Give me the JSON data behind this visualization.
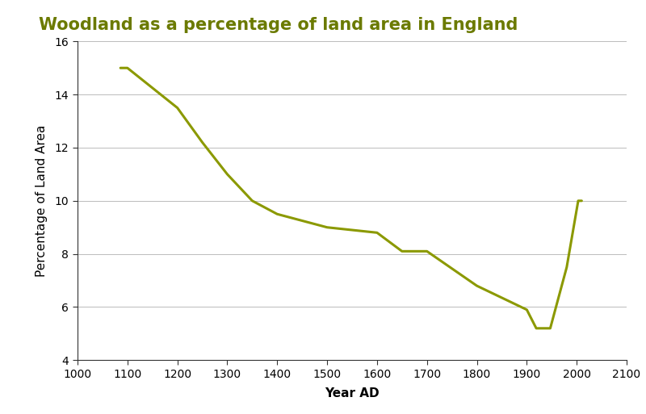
{
  "title": "Woodland as a percentage of land area in England",
  "xlabel": "Year AD",
  "ylabel": "Percentage of Land Area",
  "line_color": "#8B9900",
  "line_width": 2.2,
  "x": [
    1086,
    1100,
    1200,
    1250,
    1300,
    1350,
    1400,
    1500,
    1600,
    1650,
    1700,
    1800,
    1900,
    1919,
    1947,
    1980,
    2003,
    2010
  ],
  "y": [
    15.0,
    15.0,
    13.5,
    12.2,
    11.0,
    10.0,
    9.5,
    9.0,
    8.8,
    8.1,
    8.1,
    6.8,
    5.9,
    5.2,
    5.2,
    7.5,
    10.0,
    10.0
  ],
  "xlim": [
    1000,
    2100
  ],
  "ylim": [
    4,
    16
  ],
  "xticks": [
    1000,
    1100,
    1200,
    1300,
    1400,
    1500,
    1600,
    1700,
    1800,
    1900,
    2000,
    2100
  ],
  "yticks": [
    4,
    6,
    8,
    10,
    12,
    14,
    16
  ],
  "title_color": "#6b7a00",
  "title_fontsize": 15,
  "axis_label_fontsize": 11,
  "tick_fontsize": 10,
  "background_color": "#ffffff",
  "grid_color": "#bbbbbb",
  "grid_linewidth": 0.7,
  "spine_color": "#333333"
}
